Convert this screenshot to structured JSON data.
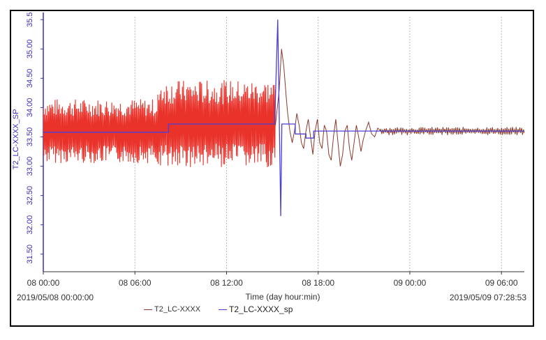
{
  "chart_data": {
    "type": "line",
    "xlabel": "Time (day hour:min)",
    "ylabel": "T2_LC-XXXX_SP",
    "x_ticks": [
      "08 00:00",
      "08 06:00",
      "08 12:00",
      "08 18:00",
      "09 00:00",
      "09 06:00"
    ],
    "x_tick_hours": [
      0,
      6,
      12,
      18,
      24,
      30
    ],
    "xlim_hours": [
      0,
      31.5
    ],
    "ylim": [
      31.2,
      35.55
    ],
    "y_ticks": [
      31.5,
      32.0,
      32.5,
      33.0,
      33.5,
      34.0,
      34.5,
      35.0,
      35.5
    ],
    "y_tick_labels": [
      "31.50",
      "32.00",
      "32.50",
      "33.00",
      "33.50",
      "34.00",
      "34.50",
      "35.00",
      "35.5"
    ],
    "grid_x": true,
    "grid_y": false,
    "range_start": "2019/05/08 00:00:00",
    "range_end": "2019/05/09 07:28:53",
    "series": [
      {
        "name": "T2_LC-XXXX",
        "color": "#e8322a",
        "line_color": "#8b3a2a",
        "segments": [
          {
            "from": 0.0,
            "to": 7.5,
            "center": 33.6,
            "amplitude": 0.55
          },
          {
            "from": 7.5,
            "to": 15.2,
            "center": 33.72,
            "amplitude": 0.75
          }
        ],
        "settling": [
          [
            15.2,
            33.7
          ],
          [
            15.45,
            34.3
          ],
          [
            15.6,
            35.0
          ],
          [
            15.75,
            34.7
          ],
          [
            15.9,
            34.2
          ],
          [
            16.0,
            33.9
          ],
          [
            16.15,
            33.6
          ],
          [
            16.3,
            33.4
          ],
          [
            16.45,
            33.6
          ],
          [
            16.6,
            33.9
          ],
          [
            16.75,
            33.7
          ],
          [
            16.9,
            33.4
          ],
          [
            17.05,
            33.3
          ],
          [
            17.2,
            33.6
          ],
          [
            17.35,
            33.8
          ],
          [
            17.5,
            33.5
          ],
          [
            17.65,
            33.2
          ],
          [
            17.8,
            33.6
          ],
          [
            17.95,
            33.8
          ],
          [
            18.1,
            33.4
          ],
          [
            18.25,
            33.3
          ],
          [
            18.4,
            33.7
          ],
          [
            18.55,
            33.6
          ],
          [
            18.7,
            33.2
          ],
          [
            18.85,
            33.1
          ],
          [
            19.0,
            33.5
          ],
          [
            19.15,
            33.8
          ],
          [
            19.3,
            33.4
          ],
          [
            19.45,
            33.0
          ],
          [
            19.6,
            33.2
          ],
          [
            19.75,
            33.6
          ],
          [
            19.9,
            33.7
          ],
          [
            20.05,
            33.3
          ],
          [
            20.2,
            33.1
          ],
          [
            20.35,
            33.4
          ],
          [
            20.5,
            33.7
          ],
          [
            20.65,
            33.5
          ],
          [
            20.8,
            33.25
          ],
          [
            20.95,
            33.45
          ],
          [
            21.1,
            33.6
          ],
          [
            21.3,
            33.75
          ],
          [
            21.5,
            33.55
          ],
          [
            21.7,
            33.5
          ],
          [
            21.9,
            33.65
          ],
          [
            22.1,
            33.6
          ]
        ],
        "steady": {
          "from": 22.1,
          "to": 31.5,
          "center": 33.6,
          "amplitude": 0.07
        }
      },
      {
        "name": "T2_LC-XXXX_sp",
        "color": "#4b3fd6",
        "points": [
          [
            0.0,
            33.58
          ],
          [
            8.2,
            33.58
          ],
          [
            8.2,
            33.72
          ],
          [
            15.15,
            33.72
          ],
          [
            15.35,
            35.5
          ],
          [
            15.55,
            32.15
          ],
          [
            15.62,
            33.72
          ],
          [
            16.5,
            33.72
          ],
          [
            16.5,
            33.55
          ],
          [
            17.2,
            33.55
          ],
          [
            17.2,
            33.48
          ],
          [
            17.7,
            33.48
          ],
          [
            17.7,
            33.6
          ],
          [
            31.5,
            33.6
          ]
        ]
      }
    ]
  }
}
